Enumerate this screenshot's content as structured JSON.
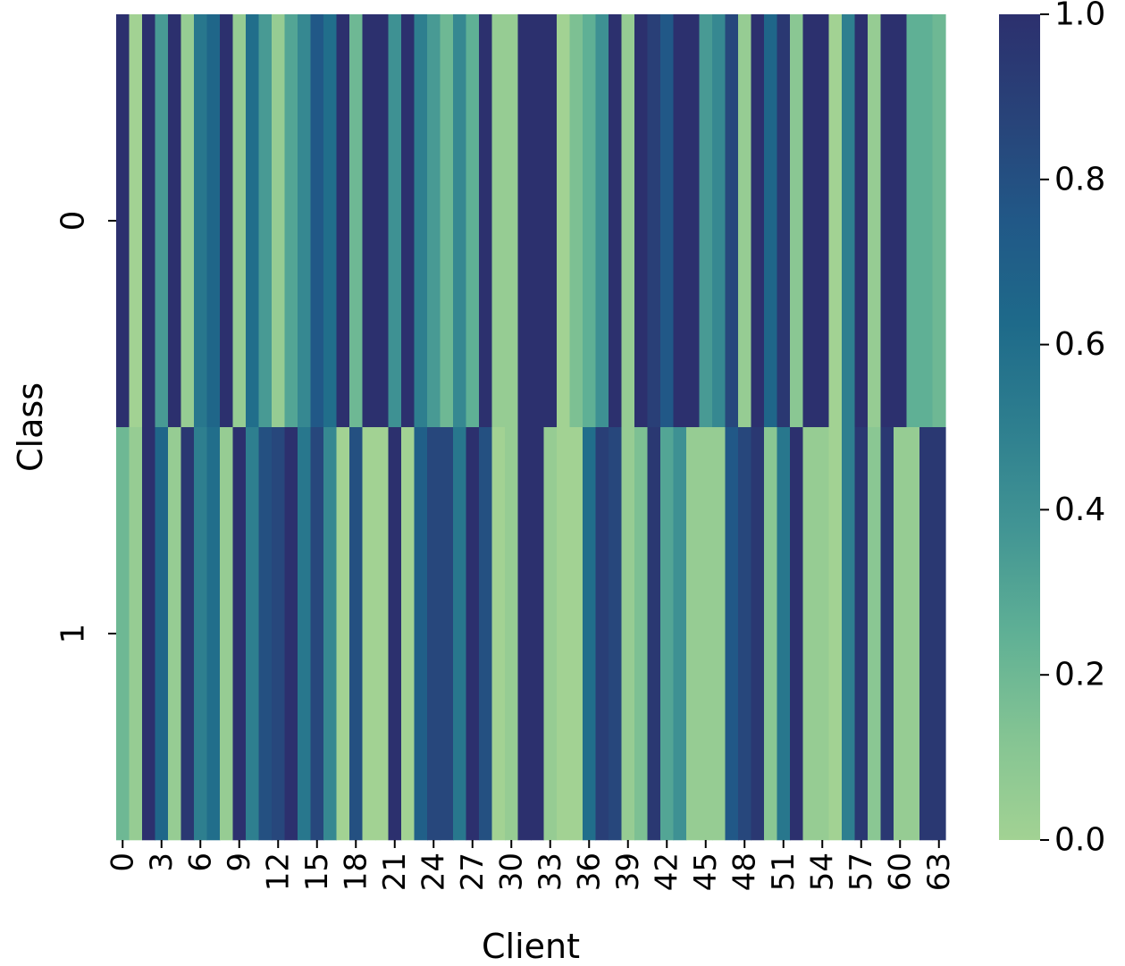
{
  "chart_data": {
    "type": "heatmap",
    "title": "",
    "xlabel": "Client",
    "ylabel": "Class",
    "x_tick_labels": [
      "0",
      "3",
      "6",
      "9",
      "12",
      "15",
      "18",
      "21",
      "24",
      "27",
      "30",
      "33",
      "36",
      "39",
      "42",
      "45",
      "48",
      "51",
      "54",
      "57",
      "60",
      "63"
    ],
    "x_tick_every": 3,
    "y_tick_labels": [
      "0",
      "1"
    ],
    "colorbar": {
      "min": 0.0,
      "max": 1.0,
      "tick_labels": [
        "0.0",
        "0.2",
        "0.4",
        "0.6",
        "0.8",
        "1.0"
      ],
      "colors": [
        "#a2d293",
        "#84c493",
        "#5fb095",
        "#429594",
        "#2e7f8f",
        "#1e6a8a",
        "#215887",
        "#284379",
        "#2c306e"
      ]
    },
    "clients": 64,
    "classes": 2,
    "values": [
      [
        1.0,
        0.0,
        1.0,
        0.35,
        1.0,
        0.05,
        0.55,
        0.65,
        1.0,
        0.05,
        0.6,
        0.35,
        0.05,
        0.3,
        0.45,
        0.75,
        0.6,
        1.0,
        0.2,
        1.0,
        1.0,
        0.4,
        1.0,
        0.5,
        0.35,
        0.2,
        0.45,
        0.25,
        1.0,
        0.05,
        0.05,
        1.0,
        1.0,
        1.0,
        0.0,
        0.15,
        0.25,
        0.4,
        1.0,
        0.05,
        1.0,
        0.9,
        0.75,
        1.0,
        1.0,
        0.35,
        0.45,
        0.85,
        0.05,
        1.0,
        0.65,
        0.95,
        0.1,
        1.0,
        1.0,
        0.0,
        0.5,
        1.0,
        0.05,
        1.0,
        1.0,
        0.25,
        0.25,
        0.2
      ],
      [
        0.2,
        0.05,
        1.0,
        0.65,
        0.05,
        0.95,
        0.5,
        0.6,
        0.05,
        1.0,
        0.5,
        0.8,
        0.85,
        1.0,
        0.55,
        0.85,
        0.45,
        0.0,
        0.8,
        0.0,
        0.0,
        1.0,
        0.0,
        0.7,
        0.85,
        0.85,
        0.55,
        1.0,
        0.8,
        0.0,
        0.05,
        1.0,
        1.0,
        0.05,
        0.0,
        0.0,
        0.6,
        0.9,
        0.85,
        0.05,
        0.15,
        0.95,
        0.3,
        0.4,
        0.05,
        0.05,
        0.05,
        0.75,
        0.85,
        0.95,
        0.1,
        0.55,
        1.0,
        0.05,
        0.05,
        0.0,
        0.5,
        0.95,
        0.1,
        0.95,
        0.05,
        0.05,
        0.95,
        0.95
      ]
    ]
  }
}
